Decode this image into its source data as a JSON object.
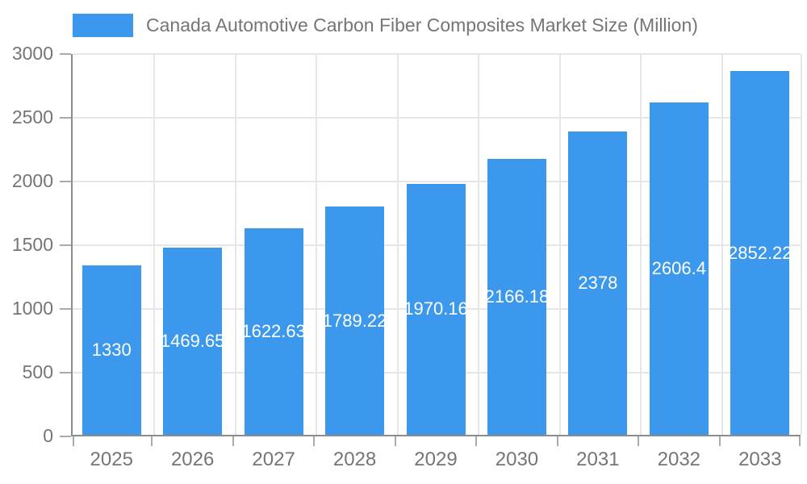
{
  "chart": {
    "legend_label": "Canada Automotive Carbon Fiber Composites Market Size (Million)",
    "colors": {
      "bar": "#3B98EC",
      "bar_value_text": "#FFFFFF",
      "axis_line": "#8C8C8C",
      "gridline": "#E6E6E6",
      "tick_mark": "#AAAAAA",
      "tick_text": "#757575",
      "legend_text": "#757575",
      "background": "#FFFFFF"
    }
  },
  "chart_data": {
    "type": "bar",
    "title": "Canada Automotive Carbon Fiber Composites Market Size (Million)",
    "xlabel": "",
    "ylabel": "",
    "categories": [
      "2025",
      "2026",
      "2027",
      "2028",
      "2029",
      "2030",
      "2031",
      "2032",
      "2033"
    ],
    "values": [
      1330,
      1469.65,
      1622.63,
      1789.22,
      1970.16,
      2166.18,
      2378,
      2606.4,
      2852.22
    ],
    "bar_labels": [
      "1330",
      "1469.65",
      "1622.63",
      "1789.22",
      "1970.16",
      "2166.18",
      "2378",
      "2606.4",
      "2852.22"
    ],
    "series": [
      {
        "name": "Canada Automotive Carbon Fiber Composites Market Size (Million)",
        "values": [
          1330,
          1469.65,
          1622.63,
          1789.22,
          1970.16,
          2166.18,
          2378,
          2606.4,
          2852.22
        ]
      }
    ],
    "ylim": [
      0,
      3000
    ],
    "yticks": [
      0,
      500,
      1000,
      1500,
      2000,
      2500,
      3000
    ],
    "grid": true,
    "legend_position": "top-left",
    "bar_color": "#3B98EC",
    "value_label_position": "center-inside-clipped"
  }
}
